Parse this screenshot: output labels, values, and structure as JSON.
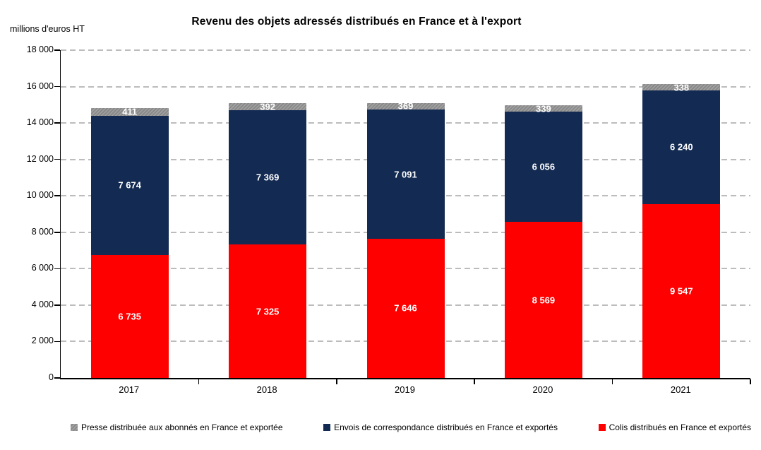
{
  "title": "Revenu des objets adressés distribués en France et à l'export",
  "y_axis_unit": "millions d'euros HT",
  "chart_data": {
    "type": "bar",
    "stacked": true,
    "title": "Revenu des objets adressés distribués en France et à l'export",
    "ylabel": "millions d'euros HT",
    "xlabel": "",
    "ylim": [
      0,
      18000
    ],
    "ytick_step": 2000,
    "ytick_labels": [
      "0",
      "2 000",
      "4 000",
      "6 000",
      "8 000",
      "10 000",
      "12 000",
      "14 000",
      "16 000",
      "18 000"
    ],
    "grid": "horizontal-dashed",
    "legend_position": "bottom",
    "categories": [
      "2017",
      "2018",
      "2019",
      "2020",
      "2021"
    ],
    "series": [
      {
        "name": "Colis distribués en France et exportés",
        "color": "#fe0000",
        "pattern": "solid",
        "values": [
          6735,
          7325,
          7646,
          8569,
          9547
        ],
        "value_labels": [
          "6 735",
          "7 325",
          "7 646",
          "8 569",
          "9 547"
        ]
      },
      {
        "name": "Envois de correspondance distribués en France et exportés",
        "color": "#132a52",
        "pattern": "solid",
        "values": [
          7674,
          7369,
          7091,
          6056,
          6240
        ],
        "value_labels": [
          "7 674",
          "7 369",
          "7 091",
          "6 056",
          "6 240"
        ]
      },
      {
        "name": "Presse distribuée aux abonnés en France et exportée",
        "color": "#8c8c8c",
        "pattern": "hatch",
        "values": [
          411,
          392,
          369,
          339,
          338
        ],
        "value_labels": [
          "411",
          "392",
          "369",
          "339",
          "338"
        ]
      }
    ],
    "legend_order": [
      2,
      1,
      0
    ],
    "colors": {
      "axis": "#000000",
      "gridline": "#bcbcbc",
      "bar_label_text": "#ffffff"
    }
  }
}
